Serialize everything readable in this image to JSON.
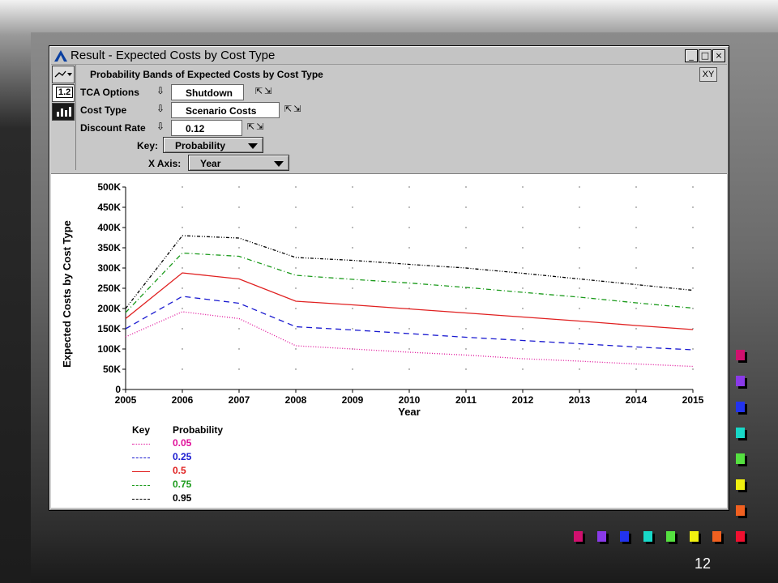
{
  "window": {
    "title": "Result - Expected Costs by Cost Type",
    "controls": {
      "minimize": "_",
      "maximize": "□",
      "close": "×"
    }
  },
  "toolbar": {
    "icons": [
      "chart-type-icon",
      "number-format-icon",
      "graph-view-icon"
    ],
    "number_format_label": "1.2"
  },
  "header": {
    "chart_heading": "Probability Bands of Expected Costs by Cost Type",
    "xy_button": "XY"
  },
  "indexes": [
    {
      "label": "TCA Options",
      "value": "Shutdown"
    },
    {
      "label": "Cost Type",
      "value": "Scenario Costs"
    },
    {
      "label": "Discount Rate",
      "value": "0.12"
    }
  ],
  "selectors": {
    "key_label": "Key:",
    "key_value": "Probability",
    "xaxis_label": "X Axis:",
    "xaxis_value": "Year"
  },
  "chart_data": {
    "type": "line",
    "xlabel": "Year",
    "ylabel": "Expected Costs by Cost Type",
    "x": [
      2005,
      2006,
      2007,
      2008,
      2009,
      2010,
      2011,
      2012,
      2013,
      2014,
      2015
    ],
    "xticks": [
      "2005",
      "2006",
      "2007",
      "2008",
      "2009",
      "2010",
      "2011",
      "2012",
      "2013",
      "2014",
      "2015"
    ],
    "yticks": [
      "0",
      "50K",
      "100K",
      "150K",
      "200K",
      "250K",
      "300K",
      "350K",
      "400K",
      "450K",
      "500K"
    ],
    "ylim": [
      0,
      500000
    ],
    "xlim": [
      2005,
      2015
    ],
    "grid": "dotted",
    "legend_title_key": "Key",
    "legend_title": "Probability",
    "series": [
      {
        "name": "0.05",
        "color": "#e0109a",
        "dash": "1,2",
        "values": [
          130000,
          192000,
          175000,
          108000,
          100000,
          92000,
          85000,
          76000,
          70000,
          63000,
          57000
        ]
      },
      {
        "name": "0.25",
        "color": "#1a1ad0",
        "dash": "7,5",
        "values": [
          150000,
          230000,
          213000,
          155000,
          147000,
          138000,
          129000,
          121000,
          113000,
          105000,
          98000
        ]
      },
      {
        "name": "0.5",
        "color": "#e02020",
        "dash": "",
        "values": [
          175000,
          288000,
          273000,
          218000,
          209000,
          199000,
          189000,
          179000,
          169000,
          158000,
          148000
        ]
      },
      {
        "name": "0.75",
        "color": "#1a9a1a",
        "dash": "6,3,1,3",
        "values": [
          190000,
          337000,
          329000,
          282000,
          272000,
          263000,
          252000,
          240000,
          228000,
          214000,
          201000
        ]
      },
      {
        "name": "0.95",
        "color": "#000000",
        "dash": "4,2,1,2,1,2",
        "values": [
          200000,
          380000,
          374000,
          326000,
          319000,
          309000,
          300000,
          287000,
          273000,
          259000,
          245000
        ]
      }
    ]
  },
  "decorations": {
    "right_column_colors": [
      "#d0106e",
      "#8a3ae8",
      "#2233ee",
      "#18d8c8",
      "#55e040",
      "#f0f010",
      "#f06020"
    ],
    "bottom_row_colors": [
      "#d0106e",
      "#8a3ae8",
      "#2233ee",
      "#18d8c8",
      "#55e040",
      "#f0f010",
      "#f06020",
      "#f01030"
    ]
  },
  "slide": {
    "page_number": "12"
  }
}
